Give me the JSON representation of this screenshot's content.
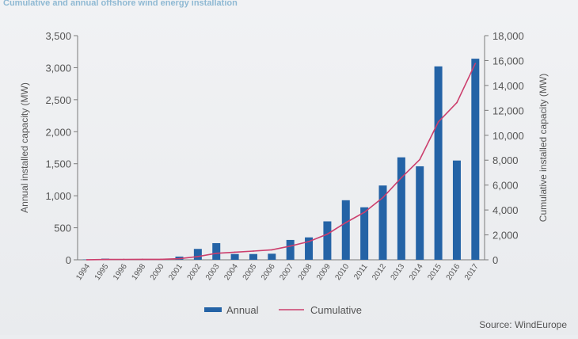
{
  "chart_data": {
    "type": "bar+line",
    "title": "Cumulative and annual offshore wind energy installation",
    "source": "Source: WindEurope",
    "categories": [
      "1994",
      "1995",
      "1996",
      "1998",
      "2000",
      "2001",
      "2002",
      "2003",
      "2004",
      "2005",
      "2006",
      "2007",
      "2008",
      "2009",
      "2010",
      "2011",
      "2012",
      "2013",
      "2014",
      "2015",
      "2016",
      "2017"
    ],
    "series": [
      {
        "name": "Annual",
        "type": "bar",
        "axis": "left",
        "color": "#2463a6",
        "values": [
          5,
          18,
          5,
          3,
          5,
          50,
          170,
          260,
          90,
          90,
          95,
          310,
          350,
          600,
          930,
          820,
          1160,
          1600,
          1460,
          3020,
          1550,
          3140
        ]
      },
      {
        "name": "Cumulative",
        "type": "line",
        "axis": "right",
        "color": "#cc3f6d",
        "values": [
          5,
          25,
          30,
          35,
          40,
          90,
          260,
          520,
          610,
          700,
          800,
          1100,
          1460,
          2060,
          2990,
          3810,
          4990,
          6590,
          8050,
          11070,
          12620,
          15760
        ]
      }
    ],
    "ylabel": "Annual installed capacity (MW)",
    "ylabel_right": "Cumulative installed capacity (MW)",
    "ylim": [
      0,
      3500
    ],
    "ylim_right": [
      0,
      18000
    ],
    "yticks": [
      "0",
      "500",
      "1,000",
      "1,500",
      "2,000",
      "2,500",
      "3,000",
      "3,500"
    ],
    "yticks_right": [
      "0",
      "2,000",
      "4,000",
      "6,000",
      "8,000",
      "10,000",
      "12,000",
      "14,000",
      "16,000",
      "18,000"
    ],
    "legend_position": "bottom",
    "grid": false
  }
}
